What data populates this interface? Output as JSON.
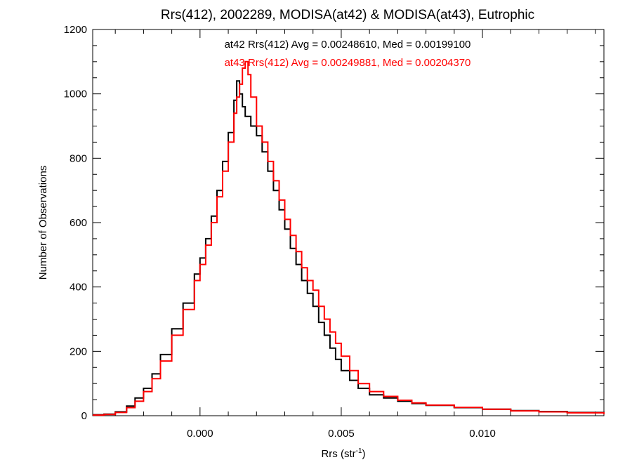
{
  "chart_data": {
    "type": "line",
    "step": true,
    "title": "Rrs(412), 2002289, MODISA(at42) & MODISA(at43), Eutrophic",
    "xlabel": {
      "base": "Rrs (str",
      "sup": "-1",
      "close": ")"
    },
    "ylabel": "Number of Observations",
    "xlim": [
      -0.0038,
      0.0143
    ],
    "ylim": [
      0,
      1200
    ],
    "x_ticks": [
      0.0,
      0.005,
      0.01
    ],
    "x_tick_labels": [
      "0.000",
      "0.005",
      "0.010"
    ],
    "y_ticks": [
      0,
      200,
      400,
      600,
      800,
      1000,
      1200
    ],
    "y_tick_labels": [
      "0",
      "200",
      "400",
      "600",
      "800",
      "1000",
      "1200"
    ],
    "grid": false,
    "annotations": [
      {
        "text": "at42 Rrs(412) Avg = 0.00248610, Med = 0.00199100",
        "color": "#000000"
      },
      {
        "text": "at43 Rrs(412) Avg = 0.00249881, Med = 0.00204370",
        "color": "#ff0000"
      }
    ],
    "series": [
      {
        "color": "#000000",
        "x": [
          -0.0038,
          -0.0034,
          -0.003,
          -0.0026,
          -0.0023,
          -0.002,
          -0.0017,
          -0.0014,
          -0.001,
          -0.0006,
          -0.0002,
          0.0,
          0.0002,
          0.0004,
          0.0006,
          0.0008,
          0.001,
          0.0012,
          0.0013,
          0.0014,
          0.0015,
          0.0016,
          0.0018,
          0.002,
          0.0022,
          0.0024,
          0.0026,
          0.0028,
          0.003,
          0.0032,
          0.0034,
          0.0036,
          0.0038,
          0.004,
          0.0042,
          0.0044,
          0.0046,
          0.0048,
          0.005,
          0.0053,
          0.0056,
          0.006,
          0.0065,
          0.007,
          0.0075,
          0.008,
          0.009,
          0.01,
          0.011,
          0.012,
          0.013,
          0.0143
        ],
        "y": [
          3,
          5,
          12,
          30,
          55,
          85,
          130,
          190,
          270,
          350,
          440,
          490,
          550,
          620,
          700,
          790,
          880,
          980,
          1040,
          1000,
          960,
          930,
          900,
          870,
          820,
          760,
          700,
          640,
          580,
          520,
          470,
          420,
          380,
          340,
          290,
          250,
          210,
          175,
          140,
          110,
          85,
          65,
          55,
          45,
          38,
          32,
          25,
          20,
          16,
          13,
          10,
          6
        ]
      },
      {
        "color": "#ff0000",
        "x": [
          -0.0038,
          -0.0034,
          -0.003,
          -0.0026,
          -0.0023,
          -0.002,
          -0.0017,
          -0.0014,
          -0.001,
          -0.0006,
          -0.0002,
          0.0,
          0.0002,
          0.0004,
          0.0006,
          0.0008,
          0.001,
          0.0012,
          0.0013,
          0.0014,
          0.0015,
          0.0016,
          0.0017,
          0.0018,
          0.002,
          0.0022,
          0.0024,
          0.0026,
          0.0028,
          0.003,
          0.0032,
          0.0034,
          0.0036,
          0.0038,
          0.004,
          0.0042,
          0.0044,
          0.0046,
          0.0048,
          0.005,
          0.0053,
          0.0056,
          0.006,
          0.0065,
          0.007,
          0.0075,
          0.008,
          0.009,
          0.01,
          0.011,
          0.012,
          0.013,
          0.0143
        ],
        "y": [
          2,
          4,
          10,
          25,
          45,
          75,
          115,
          170,
          250,
          330,
          420,
          470,
          530,
          600,
          680,
          760,
          850,
          940,
          990,
          1030,
          1080,
          1100,
          1060,
          990,
          900,
          850,
          790,
          730,
          670,
          610,
          560,
          510,
          460,
          420,
          390,
          340,
          300,
          260,
          225,
          185,
          140,
          100,
          75,
          60,
          48,
          40,
          33,
          26,
          20,
          15,
          12,
          9,
          5
        ]
      }
    ]
  }
}
